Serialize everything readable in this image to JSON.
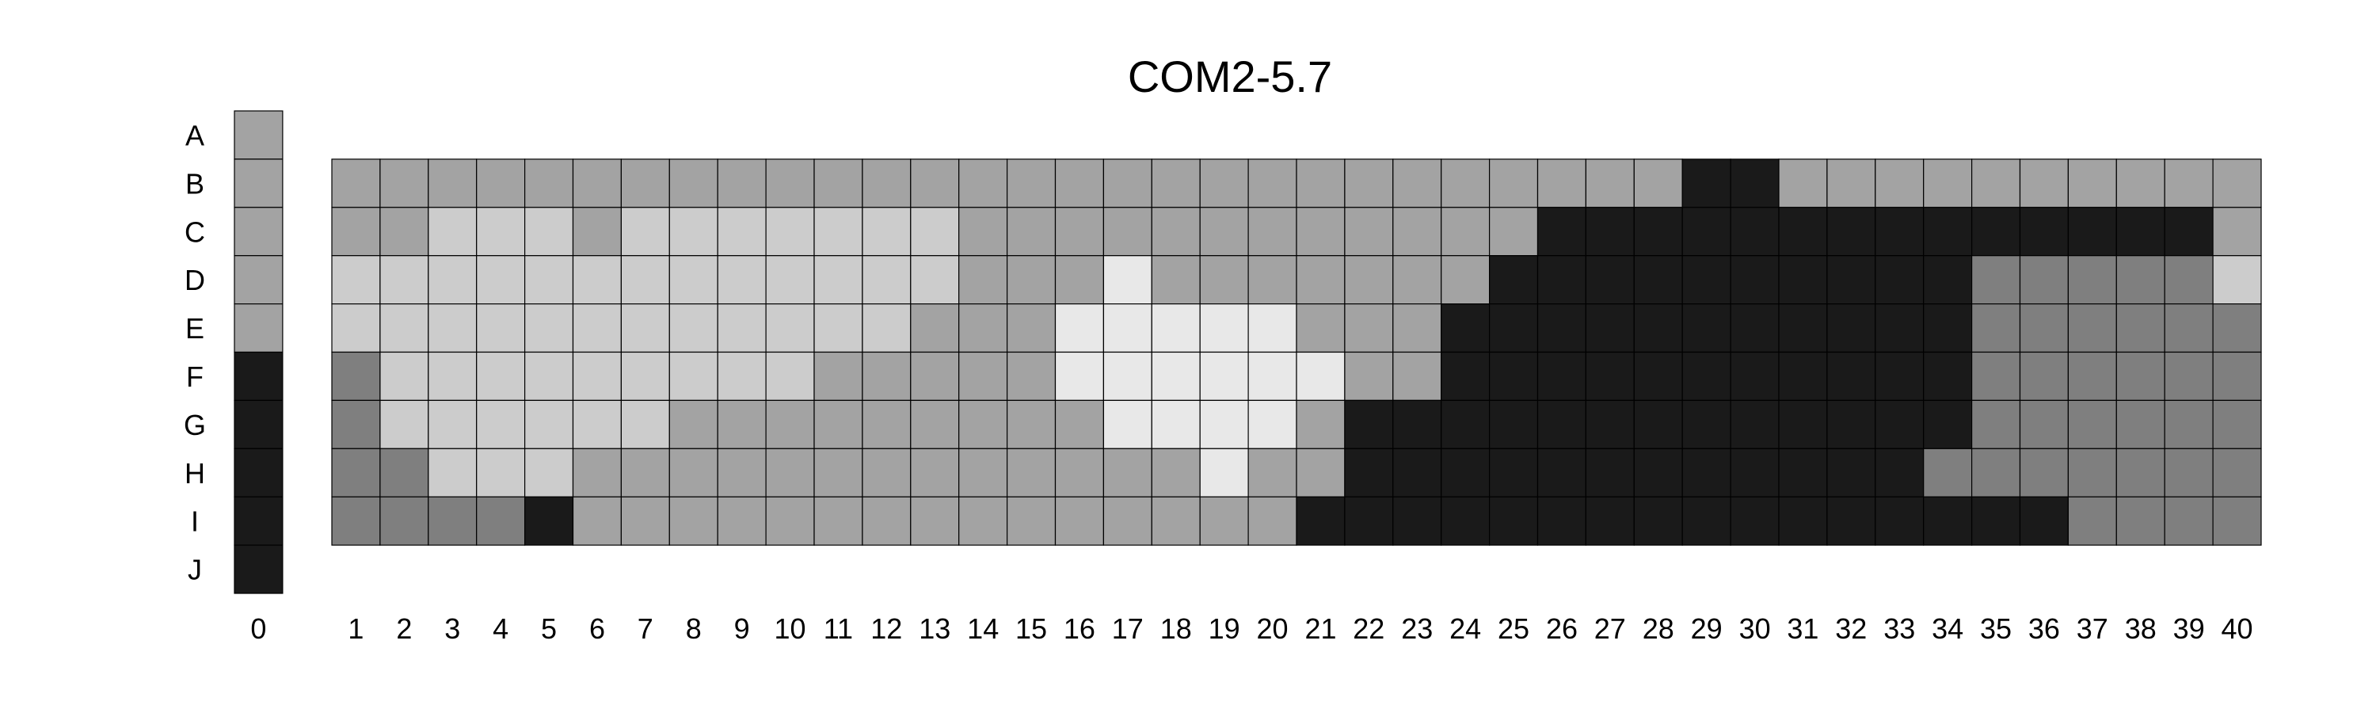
{
  "chart_data": {
    "type": "heatmap",
    "title": "COM2-5.7",
    "row_labels": [
      "A",
      "B",
      "C",
      "D",
      "E",
      "F",
      "G",
      "H",
      "I",
      "J"
    ],
    "col_labels": [
      "0",
      "1",
      "2",
      "3",
      "4",
      "5",
      "6",
      "7",
      "8",
      "9",
      "10",
      "11",
      "12",
      "13",
      "14",
      "15",
      "16",
      "17",
      "18",
      "19",
      "20",
      "21",
      "22",
      "23",
      "24",
      "25",
      "26",
      "27",
      "28",
      "29",
      "30",
      "31",
      "32",
      "33",
      "34",
      "35",
      "36",
      "37",
      "38",
      "39",
      "40"
    ],
    "key_column": {
      "label": "0",
      "rows": [
        "A",
        "B",
        "C",
        "D",
        "E",
        "F",
        "G",
        "H",
        "I",
        "J"
      ],
      "values": [
        3,
        3,
        3,
        3,
        3,
        5,
        5,
        5,
        5,
        5
      ]
    },
    "grid": {
      "rows": [
        "B",
        "C",
        "D",
        "E",
        "F",
        "G",
        "H",
        "I"
      ],
      "columns": [
        "1",
        "2",
        "3",
        "4",
        "5",
        "6",
        "7",
        "8",
        "9",
        "10",
        "11",
        "12",
        "13",
        "14",
        "15",
        "16",
        "17",
        "18",
        "19",
        "20",
        "21",
        "22",
        "23",
        "24",
        "25",
        "26",
        "27",
        "28",
        "29",
        "30",
        "31",
        "32",
        "33",
        "34",
        "35",
        "36",
        "37",
        "38",
        "39",
        "40"
      ],
      "values": [
        [
          3,
          3,
          3,
          3,
          3,
          3,
          3,
          3,
          3,
          3,
          3,
          3,
          3,
          3,
          3,
          3,
          3,
          3,
          3,
          3,
          3,
          3,
          3,
          3,
          3,
          3,
          3,
          3,
          5,
          5,
          3,
          3,
          3,
          3,
          3,
          3,
          3,
          3,
          3,
          3
        ],
        [
          3,
          3,
          2,
          2,
          2,
          3,
          2,
          2,
          2,
          2,
          2,
          2,
          2,
          3,
          3,
          3,
          3,
          3,
          3,
          3,
          3,
          3,
          3,
          3,
          3,
          5,
          5,
          5,
          5,
          5,
          5,
          5,
          5,
          5,
          5,
          5,
          5,
          5,
          5,
          3
        ],
        [
          2,
          2,
          2,
          2,
          2,
          2,
          2,
          2,
          2,
          2,
          2,
          2,
          2,
          3,
          3,
          3,
          1,
          3,
          3,
          3,
          3,
          3,
          3,
          3,
          5,
          5,
          5,
          5,
          5,
          5,
          5,
          5,
          5,
          5,
          4,
          4,
          4,
          4,
          4,
          2
        ],
        [
          2,
          2,
          2,
          2,
          2,
          2,
          2,
          2,
          2,
          2,
          2,
          2,
          3,
          3,
          3,
          1,
          1,
          1,
          1,
          1,
          3,
          3,
          3,
          5,
          5,
          5,
          5,
          5,
          5,
          5,
          5,
          5,
          5,
          5,
          4,
          4,
          4,
          4,
          4,
          4
        ],
        [
          4,
          2,
          2,
          2,
          2,
          2,
          2,
          2,
          2,
          2,
          3,
          3,
          3,
          3,
          3,
          1,
          1,
          1,
          1,
          1,
          1,
          3,
          3,
          5,
          5,
          5,
          5,
          5,
          5,
          5,
          5,
          5,
          5,
          5,
          4,
          4,
          4,
          4,
          4,
          4
        ],
        [
          4,
          2,
          2,
          2,
          2,
          2,
          2,
          3,
          3,
          3,
          3,
          3,
          3,
          3,
          3,
          3,
          1,
          1,
          1,
          1,
          3,
          5,
          5,
          5,
          5,
          5,
          5,
          5,
          5,
          5,
          5,
          5,
          5,
          5,
          4,
          4,
          4,
          4,
          4,
          4
        ],
        [
          4,
          4,
          2,
          2,
          2,
          3,
          3,
          3,
          3,
          3,
          3,
          3,
          3,
          3,
          3,
          3,
          3,
          3,
          1,
          3,
          3,
          5,
          5,
          5,
          5,
          5,
          5,
          5,
          5,
          5,
          5,
          5,
          5,
          4,
          4,
          4,
          4,
          4,
          4,
          4
        ],
        [
          4,
          4,
          4,
          4,
          5,
          3,
          3,
          3,
          3,
          3,
          3,
          3,
          3,
          3,
          3,
          3,
          3,
          3,
          3,
          3,
          5,
          5,
          5,
          5,
          5,
          5,
          5,
          5,
          5,
          5,
          5,
          5,
          5,
          5,
          5,
          5,
          4,
          4,
          4,
          4
        ]
      ]
    },
    "colors": {
      "1": "#e8e8e8",
      "2": "#cccccc",
      "3": "#a3a3a3",
      "4": "#7f7f7f",
      "5": "#1a1a1a",
      "border": "#000000",
      "background": "#ffffff"
    }
  }
}
